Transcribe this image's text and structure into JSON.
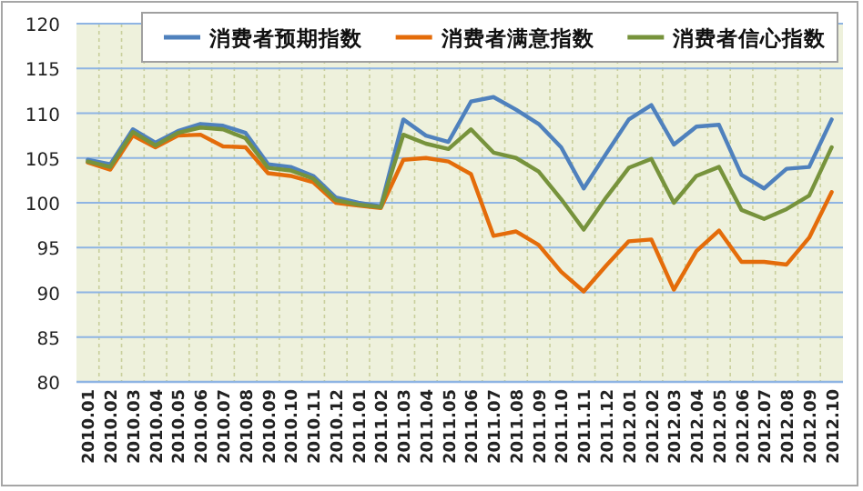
{
  "chart_data": {
    "type": "line",
    "categories": [
      "2010.01",
      "2010.02",
      "2010.03",
      "2010.04",
      "2010.05",
      "2010.06",
      "2010.07",
      "2010.08",
      "2010.09",
      "2010.10",
      "2010.11",
      "2010.12",
      "2011.01",
      "2011.02",
      "2011.03",
      "2011.04",
      "2011.05",
      "2011.06",
      "2011.07",
      "2011.08",
      "2011.09",
      "2011.10",
      "2011.11",
      "2011.12",
      "2012.01",
      "2012.02",
      "2012.03",
      "2012.04",
      "2012.05",
      "2012.06",
      "2012.07",
      "2012.08",
      "2012.09",
      "2012.10"
    ],
    "series": [
      {
        "name": "消费者预期指数",
        "color": "#4f81bd",
        "values": [
          104.8,
          104.3,
          108.2,
          106.7,
          108.0,
          108.8,
          108.6,
          107.8,
          104.3,
          104.0,
          103.0,
          100.6,
          100.0,
          99.6,
          109.3,
          107.5,
          106.8,
          111.3,
          111.8,
          110.4,
          108.8,
          106.2,
          101.6,
          105.5,
          109.3,
          110.9,
          106.5,
          108.5,
          108.7,
          103.1,
          101.6,
          103.8,
          104.0,
          109.3
        ]
      },
      {
        "name": "消费者满意指数",
        "color": "#e46c0a",
        "values": [
          104.5,
          103.7,
          107.5,
          106.2,
          107.5,
          107.6,
          106.3,
          106.2,
          103.3,
          103.0,
          102.3,
          100.0,
          99.7,
          99.4,
          104.8,
          105.0,
          104.6,
          103.2,
          96.3,
          96.8,
          95.3,
          92.3,
          90.1,
          93.0,
          95.7,
          95.9,
          90.3,
          94.6,
          96.9,
          93.4,
          93.4,
          93.1,
          96.1,
          101.2
        ]
      },
      {
        "name": "消费者信心指数",
        "color": "#77933c",
        "values": [
          104.6,
          104.0,
          107.9,
          106.4,
          107.8,
          108.4,
          108.2,
          107.2,
          103.9,
          103.6,
          102.7,
          100.3,
          99.8,
          99.5,
          107.6,
          106.6,
          106.0,
          108.2,
          105.6,
          105.0,
          103.5,
          100.4,
          97.0,
          100.6,
          103.9,
          104.9,
          100.0,
          103.0,
          104.0,
          99.2,
          98.2,
          99.3,
          100.8,
          106.2
        ]
      }
    ],
    "ylim": [
      80,
      120
    ],
    "yticks": [
      80,
      85,
      90,
      95,
      100,
      105,
      110,
      115,
      120
    ],
    "grid": true,
    "legend": "top",
    "marker": "none",
    "line_style": "solid"
  }
}
